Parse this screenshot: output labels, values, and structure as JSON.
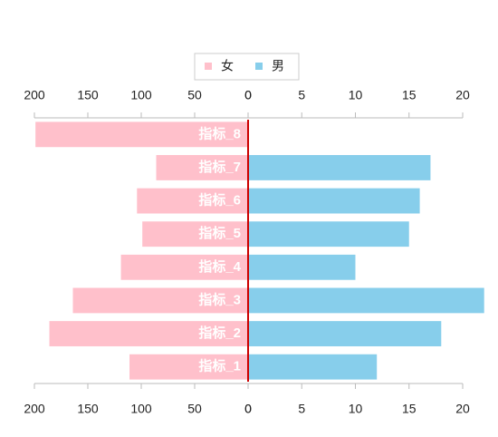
{
  "chart_data": {
    "type": "butterfly",
    "categories": [
      "指标_1",
      "指标_2",
      "指标_3",
      "指标_4",
      "指标_5",
      "指标_6",
      "指标_7",
      "指标_8"
    ],
    "series": [
      {
        "name": "女",
        "color": "#ffc0cb",
        "values": [
          111,
          186,
          164,
          119,
          99,
          104,
          86,
          199
        ]
      },
      {
        "name": "男",
        "color": "#87ceeb",
        "axis": "x2",
        "values": [
          12,
          18,
          22,
          10,
          15,
          16,
          17,
          0
        ]
      }
    ],
    "xlim": [
      0,
      200
    ],
    "xticks": [
      0,
      50,
      100,
      150,
      200
    ],
    "x2lim": [
      0,
      20
    ],
    "x2ticks": [
      0,
      5,
      10,
      15,
      20
    ],
    "center_line_color": "#cc0000",
    "legend": "top"
  }
}
